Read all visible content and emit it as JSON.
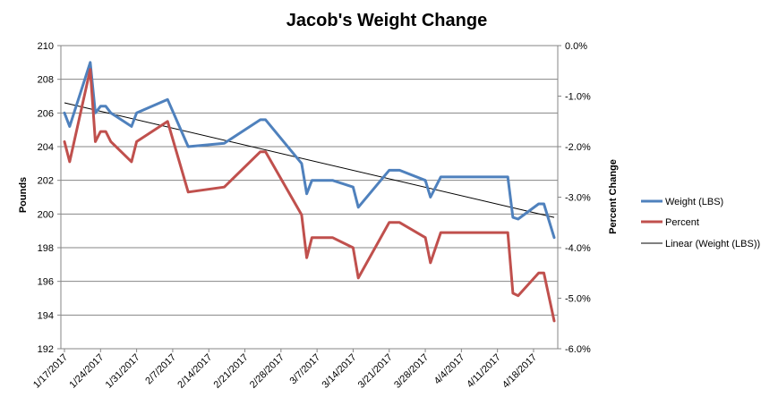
{
  "chart_data": {
    "type": "line",
    "title": "Jacob's Weight Change",
    "xlabel": "",
    "ylabel": "Pounds",
    "y2label": "Percent Change",
    "ylim": [
      192,
      210
    ],
    "y2lim": [
      -6.0,
      0.0
    ],
    "yticks": [
      "192",
      "194",
      "196",
      "198",
      "200",
      "202",
      "204",
      "206",
      "208",
      "210"
    ],
    "y2ticks": [
      "-6.0%",
      "-5.0%",
      "-4.0%",
      "-3.0%",
      "-2.0%",
      "-1.0%",
      "0.0%"
    ],
    "x_tick_labels": [
      "1/17/2017",
      "1/24/2017",
      "1/31/2017",
      "2/7/2017",
      "2/14/2017",
      "2/21/2017",
      "2/28/2017",
      "3/7/2017",
      "3/14/2017",
      "3/21/2017",
      "3/28/2017",
      "4/4/2017",
      "4/11/2017",
      "4/18/2017"
    ],
    "x_dates": [
      "2017-01-17",
      "2017-01-18",
      "2017-01-22",
      "2017-01-23",
      "2017-01-24",
      "2017-01-25",
      "2017-01-26",
      "2017-01-30",
      "2017-01-31",
      "2017-02-06",
      "2017-02-08",
      "2017-02-10",
      "2017-02-17",
      "2017-02-24",
      "2017-02-25",
      "2017-03-04",
      "2017-03-05",
      "2017-03-06",
      "2017-03-10",
      "2017-03-14",
      "2017-03-15",
      "2017-03-21",
      "2017-03-23",
      "2017-03-28",
      "2017-03-29",
      "2017-03-31",
      "2017-04-07",
      "2017-04-13",
      "2017-04-14",
      "2017-04-15",
      "2017-04-19",
      "2017-04-20",
      "2017-04-22"
    ],
    "grid": true,
    "legend_position": "right",
    "series": [
      {
        "name": "Weight (LBS)",
        "axis": "left",
        "color": "#4f81bd",
        "values": [
          206.0,
          205.2,
          209.0,
          206.0,
          206.4,
          206.4,
          206.0,
          205.2,
          206.0,
          206.8,
          205.4,
          204.0,
          204.2,
          205.6,
          205.6,
          203.0,
          201.2,
          202.0,
          202.0,
          201.6,
          200.4,
          202.6,
          202.6,
          202.0,
          201.0,
          202.2,
          202.2,
          202.2,
          199.8,
          199.7,
          200.6,
          200.6,
          198.6
        ]
      },
      {
        "name": "Percent",
        "axis": "right",
        "color": "#c0504d",
        "values": [
          -1.9,
          -2.3,
          -0.47,
          -1.9,
          -1.7,
          -1.7,
          -1.9,
          -2.3,
          -1.9,
          -1.5,
          -2.2,
          -2.9,
          -2.8,
          -2.1,
          -2.1,
          -3.35,
          -4.2,
          -3.8,
          -3.8,
          -4.0,
          -4.6,
          -3.5,
          -3.5,
          -3.8,
          -4.3,
          -3.7,
          -3.7,
          -3.7,
          -4.9,
          -4.95,
          -4.5,
          -4.5,
          -5.45
        ]
      }
    ],
    "trendline": {
      "name": "Linear (Weight (LBS))",
      "series": "Weight (LBS)",
      "color": "#000000",
      "start": 206.6,
      "end": 199.8
    }
  }
}
